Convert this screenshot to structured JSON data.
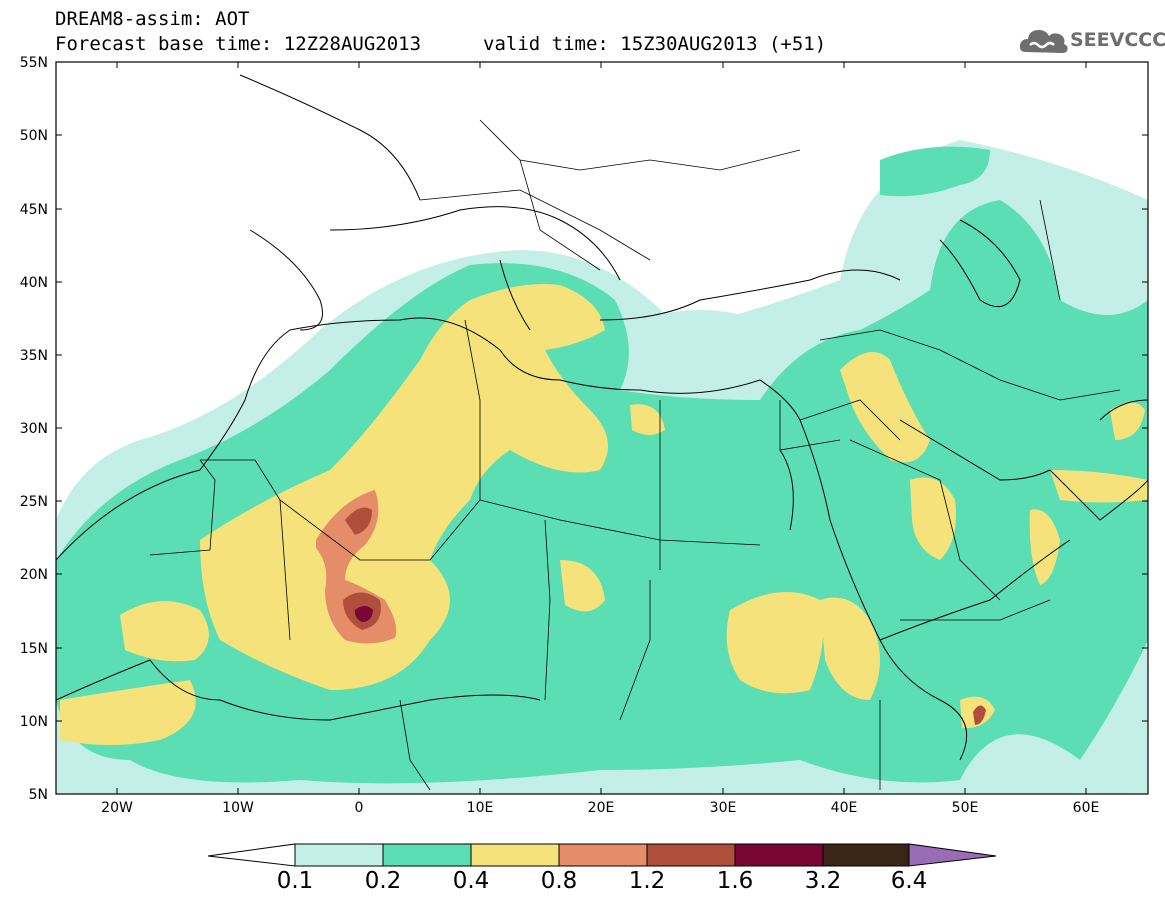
{
  "header": {
    "line1": "DREAM8-assim: AOT",
    "line2": "Forecast base time: 12Z28AUG2013",
    "valid": "valid time: 15Z30AUG2013 (+51)"
  },
  "logo": {
    "text": "SEEVCCC",
    "icon": "cloud-icon"
  },
  "map": {
    "lat_ticks": [
      "5N",
      "10N",
      "15N",
      "20N",
      "25N",
      "30N",
      "35N",
      "40N",
      "45N",
      "50N",
      "55N"
    ],
    "lon_ticks": [
      "20W",
      "10W",
      "0",
      "10E",
      "20E",
      "30E",
      "40E",
      "50E",
      "60E"
    ],
    "extent": {
      "lon_min": -25,
      "lon_max": 65,
      "lat_min": 5,
      "lat_max": 55
    }
  },
  "colorbar": {
    "labels": [
      "0.1",
      "0.2",
      "0.4",
      "0.8",
      "1.2",
      "1.6",
      "3.2",
      "6.4"
    ],
    "colors": {
      "under": "#ffffff",
      "c1": "#c4efe6",
      "c2": "#5bdeb4",
      "c3": "#f5e27a",
      "c4": "#e58d68",
      "c5": "#b04e3c",
      "c6": "#7a0636",
      "c7": "#3a2516",
      "over": "#9a6cb6"
    }
  }
}
